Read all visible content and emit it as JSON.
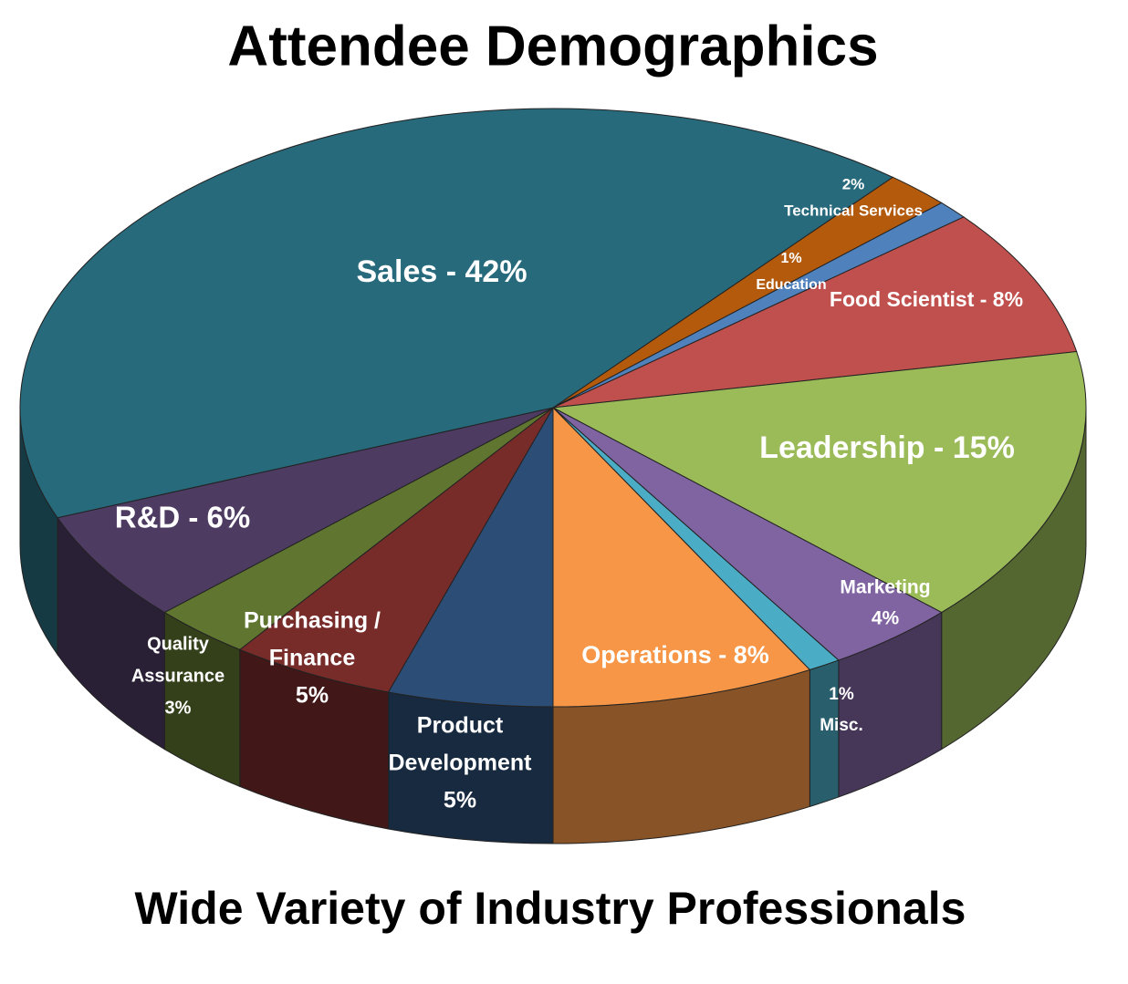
{
  "chart_data": {
    "type": "pie3d",
    "title": "Attendee Demographics",
    "subtitle": "Wide Variety of Industry Professionals",
    "labels": [
      [
        "2%",
        "Technical Services"
      ],
      [
        "1%",
        "Education"
      ],
      [
        "Food Scientist - 8%"
      ],
      [
        "Leadership - 15%"
      ],
      [
        "Marketing",
        "4%"
      ],
      [
        "1%",
        "Misc."
      ],
      [
        "Operations - 8%"
      ],
      [
        "Product",
        "Development",
        "5%"
      ],
      [
        "Purchasing /",
        "Finance",
        "5%"
      ],
      [
        "Quality",
        "Assurance",
        "3%"
      ],
      [
        "R&D - 6%"
      ],
      [
        "Sales - 42%"
      ]
    ],
    "values": [
      2,
      1,
      8,
      15,
      4,
      1,
      8,
      5,
      5,
      3,
      6,
      42
    ],
    "colors": [
      "#b35a0d",
      "#4f81bd",
      "#c0504d",
      "#9bbb59",
      "#8064a2",
      "#4bacc6",
      "#f79646",
      "#2c4d75",
      "#772c2a",
      "#5f7530",
      "#4d3b62",
      "#276a7c"
    ]
  }
}
